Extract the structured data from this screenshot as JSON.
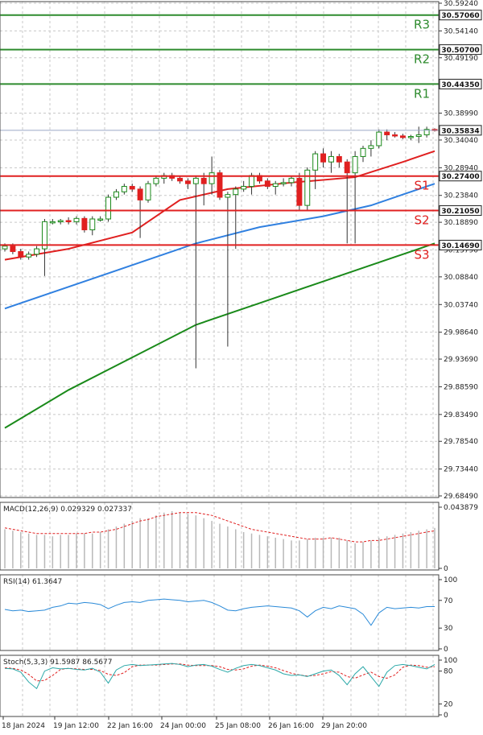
{
  "chart_data": [
    {
      "type": "candlestick",
      "price_axis_labels": [
        "30.59240",
        "30.54140",
        "30.49190",
        "30.38990",
        "30.34040",
        "30.28940",
        "30.23840",
        "30.18890",
        "30.13790",
        "30.08840",
        "30.03740",
        "29.98640",
        "29.93690",
        "29.88590",
        "29.83490",
        "29.78540",
        "29.73440",
        "29.68490"
      ],
      "ylim": [
        29.6849,
        30.5924
      ],
      "current_price": "30.35834",
      "levels": [
        {
          "name": "R3",
          "value": 30.5706,
          "label": "30.57060",
          "color": "#2e8b2e"
        },
        {
          "name": "R2",
          "value": 30.507,
          "label": "30.50700",
          "color": "#2e8b2e"
        },
        {
          "name": "R1",
          "value": 30.4435,
          "label": "30.44350",
          "color": "#2e8b2e"
        },
        {
          "name": "S1",
          "value": 30.274,
          "label": "30.27400",
          "color": "#e02020"
        },
        {
          "name": "S2",
          "value": 30.2105,
          "label": "30.21050",
          "color": "#e02020"
        },
        {
          "name": "S3",
          "value": 30.1469,
          "label": "30.14690",
          "color": "#e02020"
        }
      ],
      "x_tick_labels": [
        "18 Jan 2024",
        "19 Jan 12:00",
        "22 Jan 16:00",
        "24 Jan 00:00",
        "25 Jan 08:00",
        "26 Jan 16:00",
        "29 Jan 20:00"
      ],
      "candles": [
        [
          30.14,
          30.15,
          30.135,
          30.145
        ],
        [
          30.145,
          30.15,
          30.13,
          30.135
        ],
        [
          30.135,
          30.14,
          30.12,
          30.125
        ],
        [
          30.125,
          30.135,
          30.12,
          30.13
        ],
        [
          30.13,
          30.145,
          30.125,
          30.14
        ],
        [
          30.14,
          30.195,
          30.09,
          30.19
        ],
        [
          30.19,
          30.195,
          30.185,
          30.19
        ],
        [
          30.19,
          30.195,
          30.185,
          30.192
        ],
        [
          30.192,
          30.198,
          30.185,
          30.19
        ],
        [
          30.19,
          30.2,
          30.185,
          30.196
        ],
        [
          30.196,
          30.2,
          30.17,
          30.175
        ],
        [
          30.175,
          30.2,
          30.165,
          30.195
        ],
        [
          30.195,
          30.2,
          30.19,
          30.195
        ],
        [
          30.195,
          30.24,
          30.19,
          30.235
        ],
        [
          30.235,
          30.25,
          30.23,
          30.245
        ],
        [
          30.245,
          30.26,
          30.24,
          30.255
        ],
        [
          30.255,
          30.26,
          30.245,
          30.25
        ],
        [
          30.25,
          30.255,
          30.16,
          30.23
        ],
        [
          30.23,
          30.265,
          30.225,
          30.26
        ],
        [
          30.26,
          30.275,
          30.255,
          30.27
        ],
        [
          30.27,
          30.28,
          30.26,
          30.275
        ],
        [
          30.275,
          30.28,
          30.265,
          30.27
        ],
        [
          30.27,
          30.275,
          30.26,
          30.265
        ],
        [
          30.265,
          30.27,
          30.25,
          30.26
        ],
        [
          30.26,
          30.275,
          29.92,
          30.27
        ],
        [
          30.27,
          30.28,
          30.22,
          30.26
        ],
        [
          30.26,
          30.31,
          30.24,
          30.28
        ],
        [
          30.28,
          30.285,
          30.23,
          30.235
        ],
        [
          30.235,
          30.245,
          29.96,
          30.24
        ],
        [
          30.24,
          30.255,
          30.14,
          30.25
        ],
        [
          30.25,
          30.265,
          30.245,
          30.255
        ],
        [
          30.255,
          30.28,
          30.24,
          30.275
        ],
        [
          30.275,
          30.28,
          30.26,
          30.265
        ],
        [
          30.265,
          30.27,
          30.25,
          30.255
        ],
        [
          30.255,
          30.265,
          30.24,
          30.26
        ],
        [
          30.26,
          30.27,
          30.255,
          30.262
        ],
        [
          30.262,
          30.275,
          30.255,
          30.27
        ],
        [
          30.27,
          30.28,
          30.21,
          30.22
        ],
        [
          30.22,
          30.29,
          30.21,
          30.285
        ],
        [
          30.285,
          30.32,
          30.25,
          30.315
        ],
        [
          30.315,
          30.325,
          30.29,
          30.3
        ],
        [
          30.3,
          30.32,
          30.28,
          30.31
        ],
        [
          30.31,
          30.315,
          30.29,
          30.3
        ],
        [
          30.3,
          30.305,
          30.15,
          30.28
        ],
        [
          30.28,
          30.32,
          30.15,
          30.31
        ],
        [
          30.31,
          30.33,
          30.3,
          30.325
        ],
        [
          30.325,
          30.34,
          30.31,
          30.33
        ],
        [
          30.33,
          30.36,
          30.325,
          30.355
        ],
        [
          30.355,
          30.36,
          30.34,
          30.35
        ],
        [
          30.35,
          30.355,
          30.345,
          30.348
        ],
        [
          30.348,
          30.352,
          30.342,
          30.345
        ],
        [
          30.345,
          30.35,
          30.34,
          30.347
        ],
        [
          30.347,
          30.365,
          30.335,
          30.35
        ],
        [
          30.35,
          30.365,
          30.345,
          30.36
        ],
        [
          30.36,
          30.362,
          30.356,
          30.358
        ]
      ],
      "moving_averages": [
        {
          "color": "#e02020",
          "points": [
            [
              0,
              30.12
            ],
            [
              8,
              30.14
            ],
            [
              16,
              30.17
            ],
            [
              22,
              30.23
            ],
            [
              28,
              30.25
            ],
            [
              36,
              30.262
            ],
            [
              44,
              30.272
            ],
            [
              50,
              30.3
            ],
            [
              54,
              30.32
            ]
          ]
        },
        {
          "color": "#3080e0",
          "points": [
            [
              0,
              30.03
            ],
            [
              8,
              30.07
            ],
            [
              16,
              30.11
            ],
            [
              24,
              30.15
            ],
            [
              32,
              30.18
            ],
            [
              40,
              30.2
            ],
            [
              46,
              30.22
            ],
            [
              54,
              30.26
            ]
          ]
        },
        {
          "color": "#1a8a1a",
          "points": [
            [
              0,
              29.81
            ],
            [
              8,
              29.88
            ],
            [
              16,
              29.94
            ],
            [
              24,
              30.0
            ],
            [
              32,
              30.04
            ],
            [
              40,
              30.08
            ],
            [
              48,
              30.12
            ],
            [
              54,
              30.15
            ]
          ]
        }
      ],
      "watermark": "MACD(12,26,9)"
    },
    {
      "type": "bar",
      "title": "MACD(12,26,9) 0.029329 0.027337",
      "axis_labels": [
        "0.043879",
        "0"
      ],
      "ylim": [
        0,
        0.043879
      ],
      "values": [
        0.028,
        0.027,
        0.026,
        0.025,
        0.024,
        0.024,
        0.023,
        0.024,
        0.024,
        0.025,
        0.025,
        0.025,
        0.026,
        0.028,
        0.03,
        0.032,
        0.034,
        0.036,
        0.036,
        0.038,
        0.04,
        0.041,
        0.04,
        0.039,
        0.038,
        0.036,
        0.034,
        0.032,
        0.03,
        0.028,
        0.026,
        0.025,
        0.024,
        0.023,
        0.022,
        0.021,
        0.02,
        0.02,
        0.021,
        0.022,
        0.022,
        0.022,
        0.022,
        0.02,
        0.018,
        0.019,
        0.02,
        0.022,
        0.023,
        0.024,
        0.025,
        0.026,
        0.027,
        0.028,
        0.029
      ],
      "signal": [
        0.029,
        0.028,
        0.027,
        0.026,
        0.025,
        0.025,
        0.025,
        0.025,
        0.025,
        0.025,
        0.025,
        0.026,
        0.026,
        0.027,
        0.028,
        0.03,
        0.032,
        0.034,
        0.035,
        0.037,
        0.038,
        0.039,
        0.04,
        0.04,
        0.04,
        0.039,
        0.038,
        0.036,
        0.034,
        0.032,
        0.03,
        0.028,
        0.027,
        0.026,
        0.025,
        0.024,
        0.023,
        0.022,
        0.021,
        0.021,
        0.021,
        0.022,
        0.021,
        0.02,
        0.019,
        0.019,
        0.02,
        0.02,
        0.021,
        0.022,
        0.023,
        0.024,
        0.025,
        0.026,
        0.027
      ]
    },
    {
      "type": "line",
      "title": "RSI(14) 61.3647",
      "axis_labels": [
        "100",
        "70",
        "30",
        "0"
      ],
      "ylim": [
        0,
        100
      ],
      "values": [
        57,
        55,
        56,
        54,
        55,
        56,
        60,
        62,
        66,
        65,
        67,
        66,
        64,
        58,
        63,
        67,
        68,
        67,
        70,
        71,
        72,
        71,
        70,
        68,
        69,
        70,
        67,
        62,
        56,
        55,
        58,
        60,
        61,
        62,
        61,
        60,
        59,
        55,
        46,
        55,
        60,
        58,
        62,
        60,
        58,
        50,
        34,
        52,
        60,
        58,
        59,
        60,
        59,
        61,
        61
      ]
    },
    {
      "type": "line",
      "title": "Stoch(5,3,3) 91.5987 86.5677",
      "axis_labels": [
        "100",
        "80",
        "20",
        "0"
      ],
      "ylim": [
        0,
        100
      ],
      "k": [
        85,
        84,
        78,
        60,
        48,
        80,
        86,
        84,
        85,
        83,
        82,
        85,
        78,
        58,
        82,
        90,
        92,
        90,
        91,
        92,
        93,
        94,
        92,
        88,
        91,
        92,
        89,
        83,
        78,
        85,
        90,
        92,
        90,
        86,
        82,
        75,
        72,
        73,
        70,
        75,
        80,
        82,
        72,
        55,
        75,
        88,
        70,
        52,
        78,
        90,
        92,
        90,
        87,
        84,
        92
      ],
      "d": [
        86,
        85,
        82,
        74,
        62,
        63,
        72,
        83,
        85,
        84,
        83,
        83,
        81,
        74,
        72,
        77,
        88,
        91,
        91,
        91,
        92,
        93,
        93,
        91,
        90,
        90,
        90,
        88,
        83,
        82,
        84,
        89,
        91,
        89,
        86,
        81,
        76,
        73,
        71,
        72,
        75,
        79,
        78,
        70,
        67,
        73,
        78,
        70,
        67,
        73,
        87,
        91,
        90,
        87,
        88
      ]
    }
  ]
}
